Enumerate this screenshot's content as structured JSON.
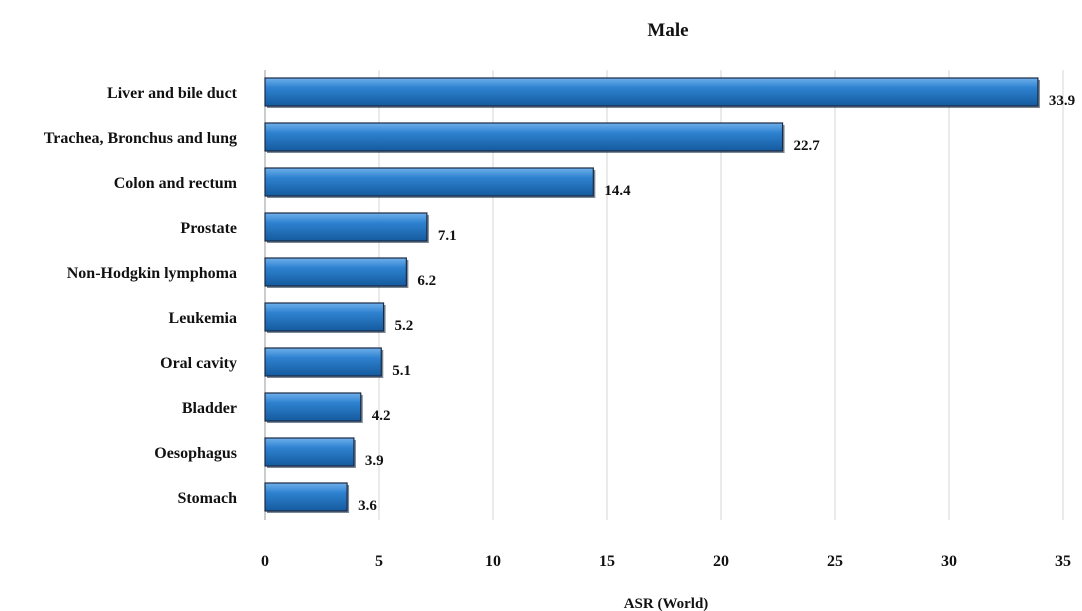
{
  "chart_data": {
    "type": "bar",
    "orientation": "horizontal",
    "title": "Male",
    "xlabel": "ASR (World)",
    "ylabel": "",
    "categories": [
      "Liver and bile duct",
      "Trachea, Bronchus and lung",
      "Colon and rectum",
      "Prostate",
      "Non-Hodgkin lymphoma",
      "Leukemia",
      "Oral cavity",
      "Bladder",
      "Oesophagus",
      "Stomach"
    ],
    "values": [
      33.9,
      22.7,
      14.4,
      7.1,
      6.2,
      5.2,
      5.1,
      4.2,
      3.9,
      3.6
    ],
    "value_labels": [
      "33.9",
      "22.7",
      "14.4",
      "7.1",
      "6.2",
      "5.2",
      "5.1",
      "4.2",
      "3.9",
      "3.6"
    ],
    "xlim": [
      0,
      35
    ],
    "xticks": [
      "0",
      "5",
      "10",
      "15",
      "20",
      "25",
      "30",
      "35"
    ],
    "grid": "vertical",
    "legend": "none",
    "bar_color": "#1f6fbe",
    "bar_edge_color": "#1b2a44"
  }
}
